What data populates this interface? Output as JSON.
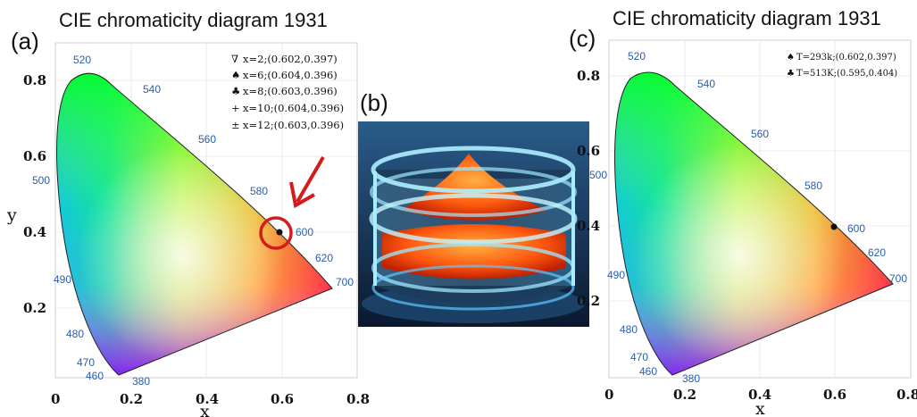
{
  "panel_a": {
    "label": "(a)",
    "title": "CIE chromaticity diagram 1931",
    "xlabel": "x",
    "ylabel": "y",
    "x_ticks": [
      "0",
      "0.2",
      "0.4",
      "0.6",
      "0.8"
    ],
    "y_ticks": [
      "0.2",
      "0.4",
      "0.6",
      "0.8"
    ],
    "wavelengths": [
      "380",
      "460",
      "470",
      "480",
      "490",
      "500",
      "520",
      "540",
      "560",
      "580",
      "600",
      "620",
      "700"
    ],
    "legend": [
      {
        "symbol": "∇",
        "text": "x=2;(0.602,0.397)"
      },
      {
        "symbol": "♠",
        "text": "x=6;(0.604,0.396)"
      },
      {
        "symbol": "♣",
        "text": "x=8;(0.603,0.396)"
      },
      {
        "symbol": "+",
        "text": "x=10;(0.604,0.396)"
      },
      {
        "symbol": "±",
        "text": "x=12;(0.603,0.396)"
      }
    ]
  },
  "panel_b": {
    "label": "(b)"
  },
  "panel_c": {
    "label": "(c)",
    "title": "CIE chromaticity diagram 1931",
    "xlabel": "x",
    "ylabel": "y",
    "x_ticks": [
      "0",
      "0.2",
      "0.4",
      "0.6",
      "0.8"
    ],
    "y_ticks": [
      "0.2",
      "0.4",
      "0.6",
      "0.8"
    ],
    "wavelengths": [
      "380",
      "460",
      "470",
      "480",
      "490",
      "500",
      "520",
      "540",
      "560",
      "580",
      "600",
      "620",
      "700"
    ],
    "legend": [
      {
        "symbol": "♠",
        "text": "T=293k;(0.602,0.397)"
      },
      {
        "symbol": "♣",
        "text": "T=513K;(0.595,0.404)"
      }
    ]
  },
  "colors": {
    "wavelength_label": "#2a5db0",
    "marker_circle": "#d41c1c",
    "arrow": "#d41c1c"
  }
}
